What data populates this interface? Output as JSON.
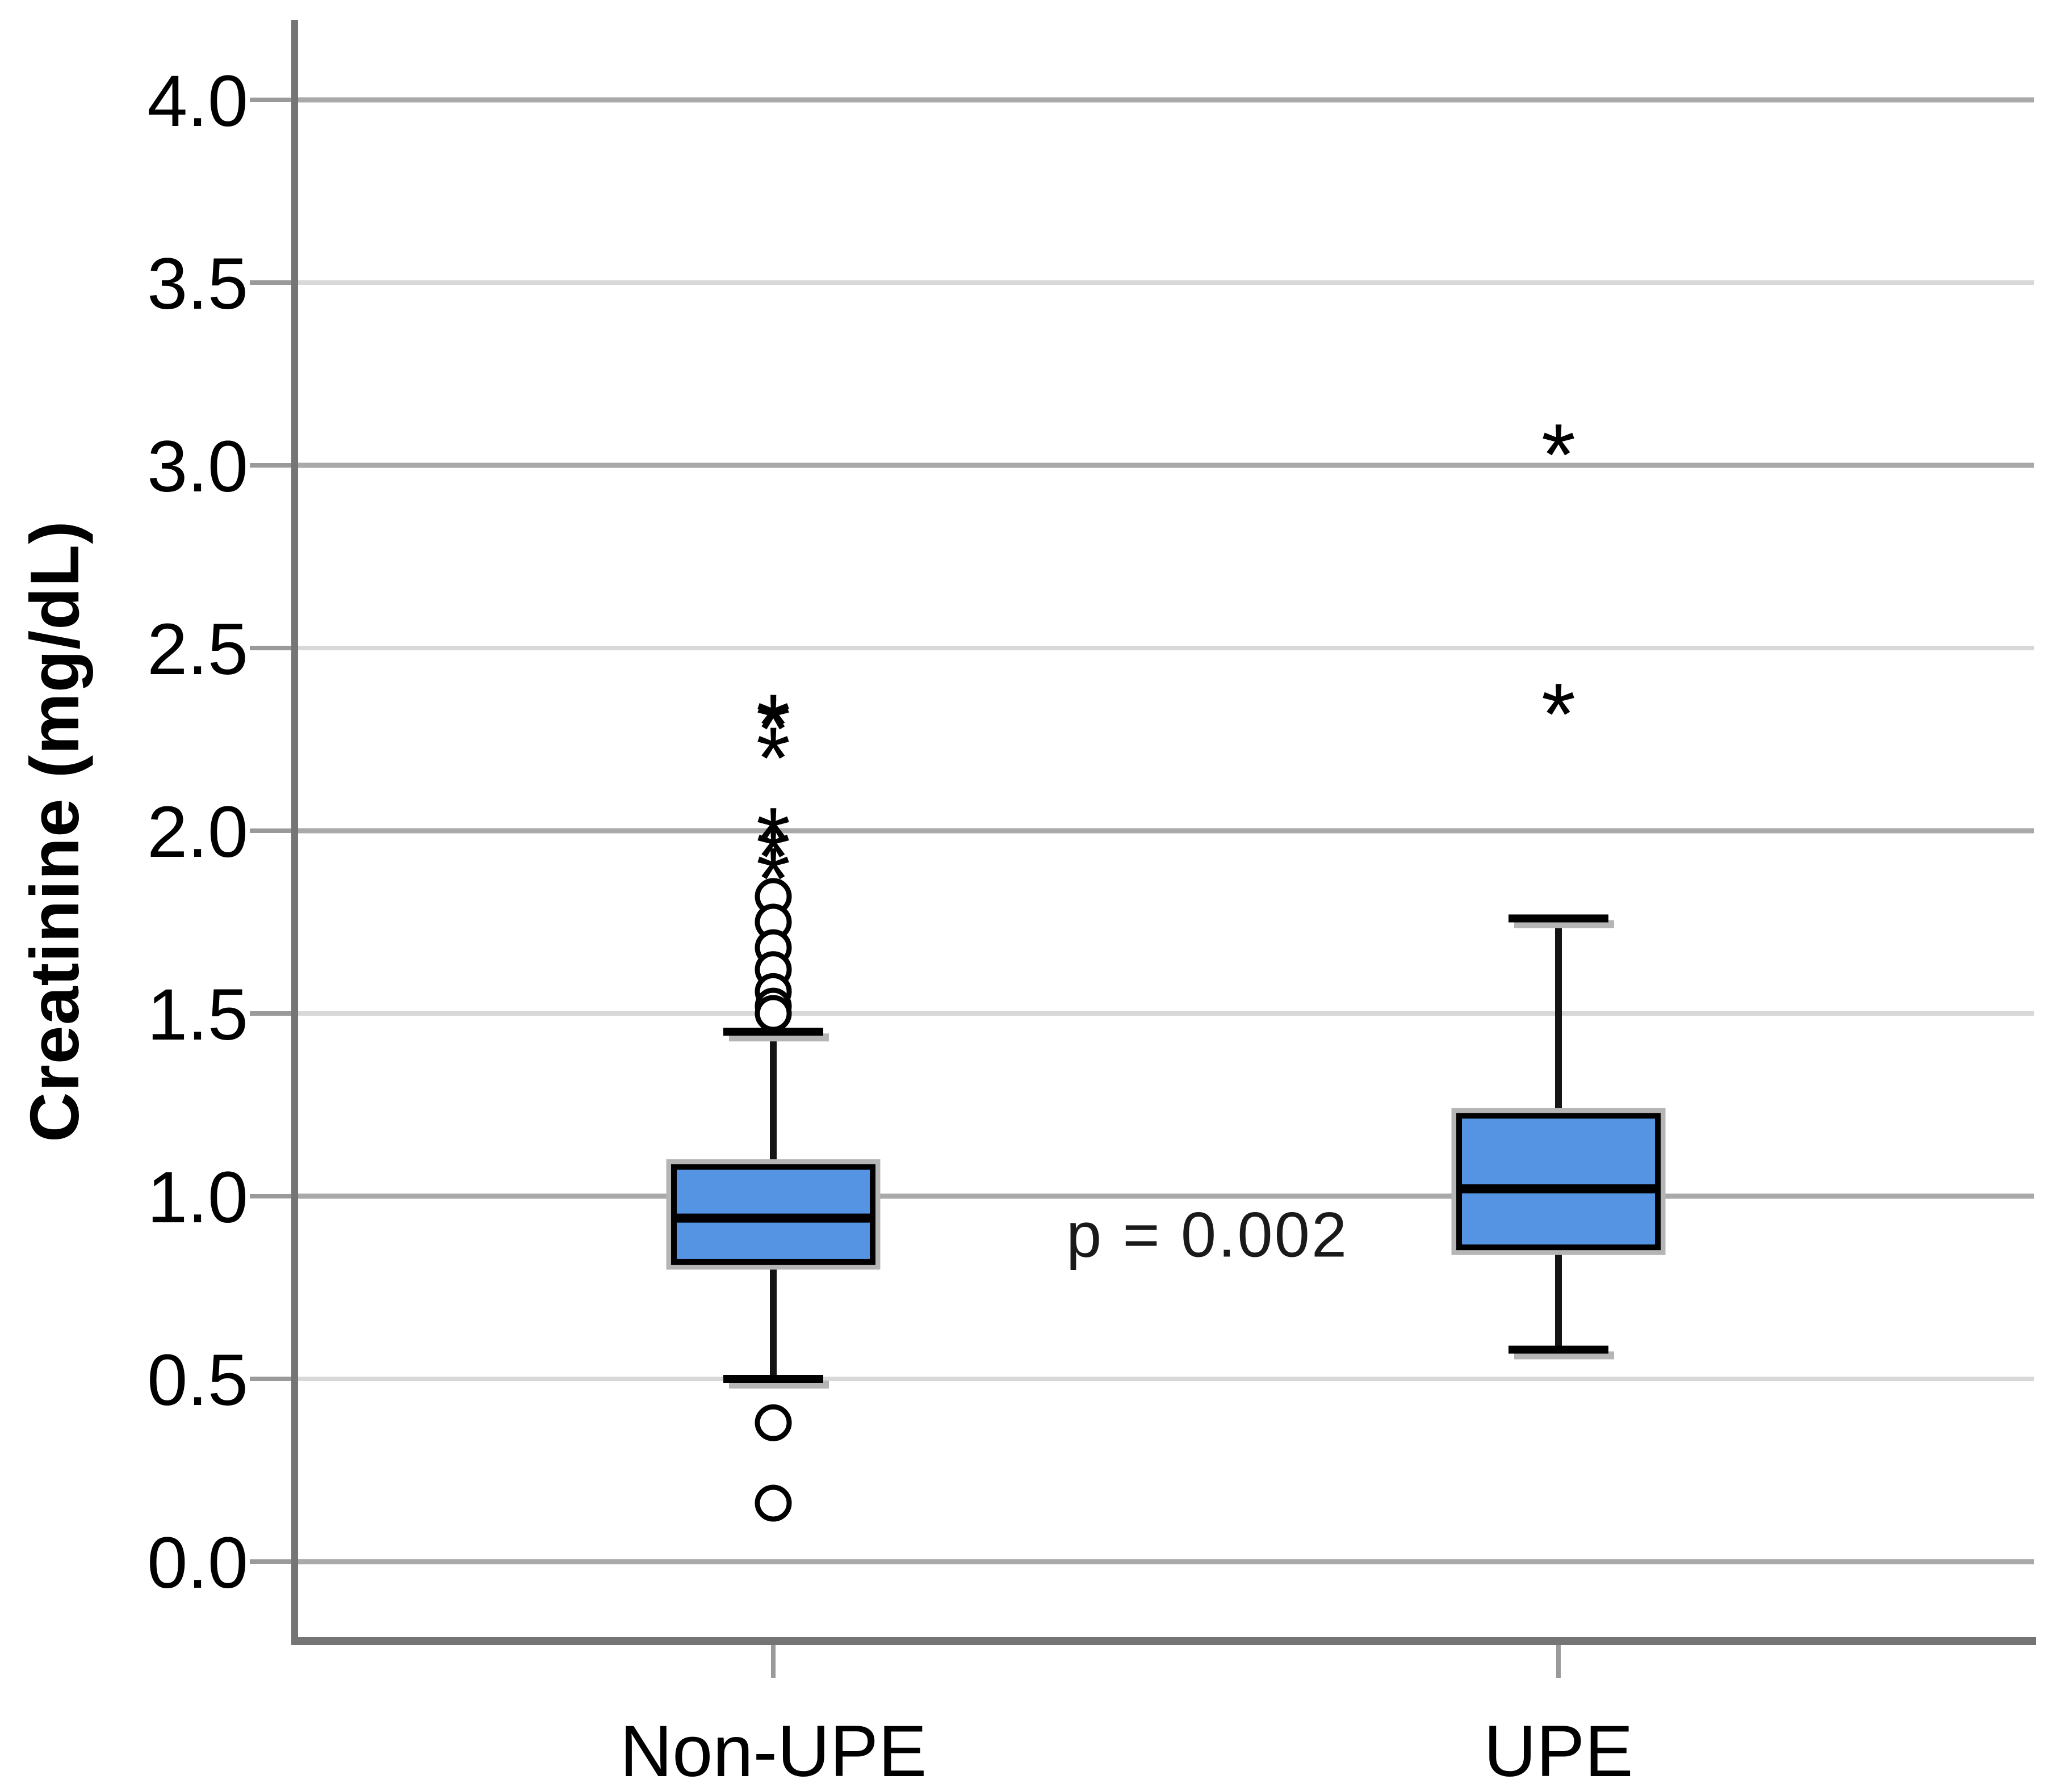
{
  "chart_data": {
    "type": "boxplot",
    "title": "",
    "ylabel": "Creatinine (mg/dL)",
    "xlabel": "",
    "ylim": [
      -0.22,
      4.2
    ],
    "grid": true,
    "legend_position": "none",
    "yticks": [
      {
        "value": 4.0,
        "label": "4.0"
      },
      {
        "value": 3.5,
        "label": "3.5"
      },
      {
        "value": 3.0,
        "label": "3.0"
      },
      {
        "value": 2.5,
        "label": "2.5"
      },
      {
        "value": 2.0,
        "label": "2.0"
      },
      {
        "value": 1.5,
        "label": "1.5"
      },
      {
        "value": 1.0,
        "label": "1.0"
      },
      {
        "value": 0.5,
        "label": "0.5"
      },
      {
        "value": 0.0,
        "label": "0.0"
      }
    ],
    "categories": [
      "Non-UPE",
      "UPE"
    ],
    "boxes": [
      {
        "label": "Non-UPE",
        "whisker_low": 0.5,
        "q1": 0.82,
        "median": 0.94,
        "q3": 1.08,
        "whisker_high": 1.45,
        "outliers_mild": [
          1.82,
          1.75,
          1.68,
          1.62,
          1.56,
          1.52,
          1.5,
          0.38,
          0.16
        ],
        "outliers_extreme": [
          2.38,
          2.37,
          2.29,
          2.07,
          2.02,
          1.96
        ]
      },
      {
        "label": "UPE",
        "whisker_low": 0.58,
        "q1": 0.86,
        "median": 1.02,
        "q3": 1.22,
        "whisker_high": 1.76,
        "outliers_mild": [],
        "outliers_extreme": [
          3.12,
          2.41
        ]
      }
    ],
    "annotation": {
      "text": "p = 0.002"
    },
    "markers": {
      "mild_outlier": "open-circle",
      "extreme_outlier": "asterisk"
    },
    "colors": {
      "box_fill": "#5594E2",
      "box_border": "#000000",
      "median_line": "#000000",
      "whisker": "#141414",
      "outlier": "#000000",
      "box_halo": "#b5b5b5",
      "grid_major": "#a9a9a9",
      "grid_minor": "#d8d8d8",
      "axis_line": "#757575",
      "tick_mark": "#9a9a9a",
      "text": "#000000",
      "background": "#ffffff"
    }
  }
}
